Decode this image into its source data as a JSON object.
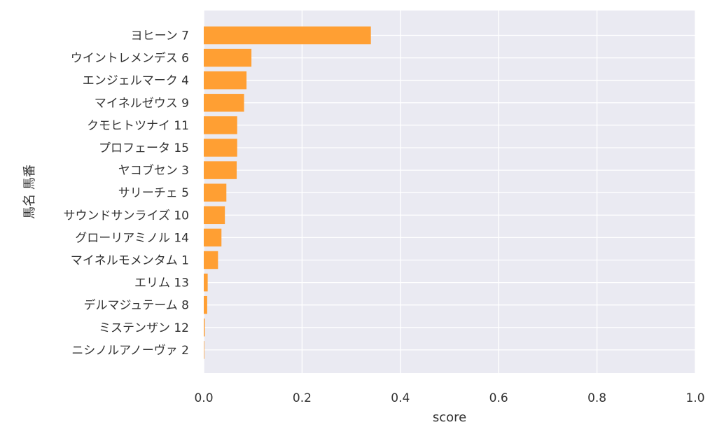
{
  "chart_data": {
    "type": "bar",
    "orientation": "horizontal",
    "xlabel": "score",
    "ylabel": "馬名 馬番",
    "xlim": [
      0.0,
      1.0
    ],
    "xticks": [
      "0.0",
      "0.2",
      "0.4",
      "0.6",
      "0.8",
      "1.0"
    ],
    "grid": true,
    "bar_color": "#ff9f33",
    "background_color": "#eaeaf2",
    "categories": [
      "ヨヒーン 7",
      "ウイントレメンデス 6",
      "エンジェルマーク 4",
      "マイネルゼウス 9",
      "クモヒトツナイ 11",
      "プロフェータ 15",
      "ヤコブセン 3",
      "サリーチェ 5",
      "サウンドサンライズ 10",
      "グローリアミノル 14",
      "マイネルモメンタム 1",
      "エリム 13",
      "デルマジュテーム 8",
      "ミステンザン 12",
      "ニシノルアノーヴァ 2"
    ],
    "values": [
      0.34,
      0.097,
      0.087,
      0.082,
      0.068,
      0.068,
      0.067,
      0.046,
      0.043,
      0.036,
      0.029,
      0.008,
      0.007,
      0.002,
      0.001
    ]
  }
}
